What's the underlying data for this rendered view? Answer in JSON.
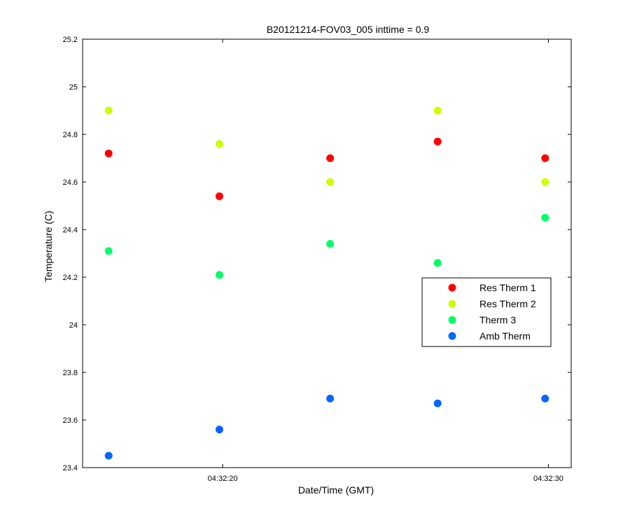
{
  "chart_data": {
    "type": "scatter",
    "title": "B20121214-FOV03_005 inttime = 0.9",
    "xlabel": "Date/Time (GMT)",
    "ylabel": "Temperature (C)",
    "x_tick_labels": [
      "04:32:20",
      "04:32:30"
    ],
    "x_ticks": [
      "04:32:20",
      "04:32:30"
    ],
    "x": [
      "04:32:16.5",
      "04:32:19.9",
      "04:32:23.3",
      "04:32:26.6",
      "04:32:29.9"
    ],
    "xlim": [
      "04:32:15.7",
      "04:32:30.7"
    ],
    "ylim": [
      23.4,
      25.2
    ],
    "yticks": [
      23.4,
      23.6,
      23.8,
      24,
      24.2,
      24.4,
      24.6,
      24.8,
      25,
      25.2
    ],
    "ytick_labels": [
      "23.4",
      "23.6",
      "23.8",
      "24",
      "24.2",
      "24.4",
      "24.6",
      "24.8",
      "25",
      "25.2"
    ],
    "grid": false,
    "legend_position": "right",
    "series": [
      {
        "name": "Res Therm 1",
        "color": "#ff0000",
        "values": [
          24.72,
          24.54,
          24.7,
          24.77,
          24.7
        ]
      },
      {
        "name": "Res Therm 2",
        "color": "#ccff00",
        "values": [
          24.9,
          24.76,
          24.6,
          24.9,
          24.6
        ]
      },
      {
        "name": "Therm 3",
        "color": "#00ff66",
        "values": [
          24.31,
          24.21,
          24.34,
          24.26,
          24.45
        ]
      },
      {
        "name": "Amb Therm",
        "color": "#0066ff",
        "values": [
          23.45,
          23.56,
          23.69,
          23.67,
          23.69
        ]
      }
    ]
  }
}
